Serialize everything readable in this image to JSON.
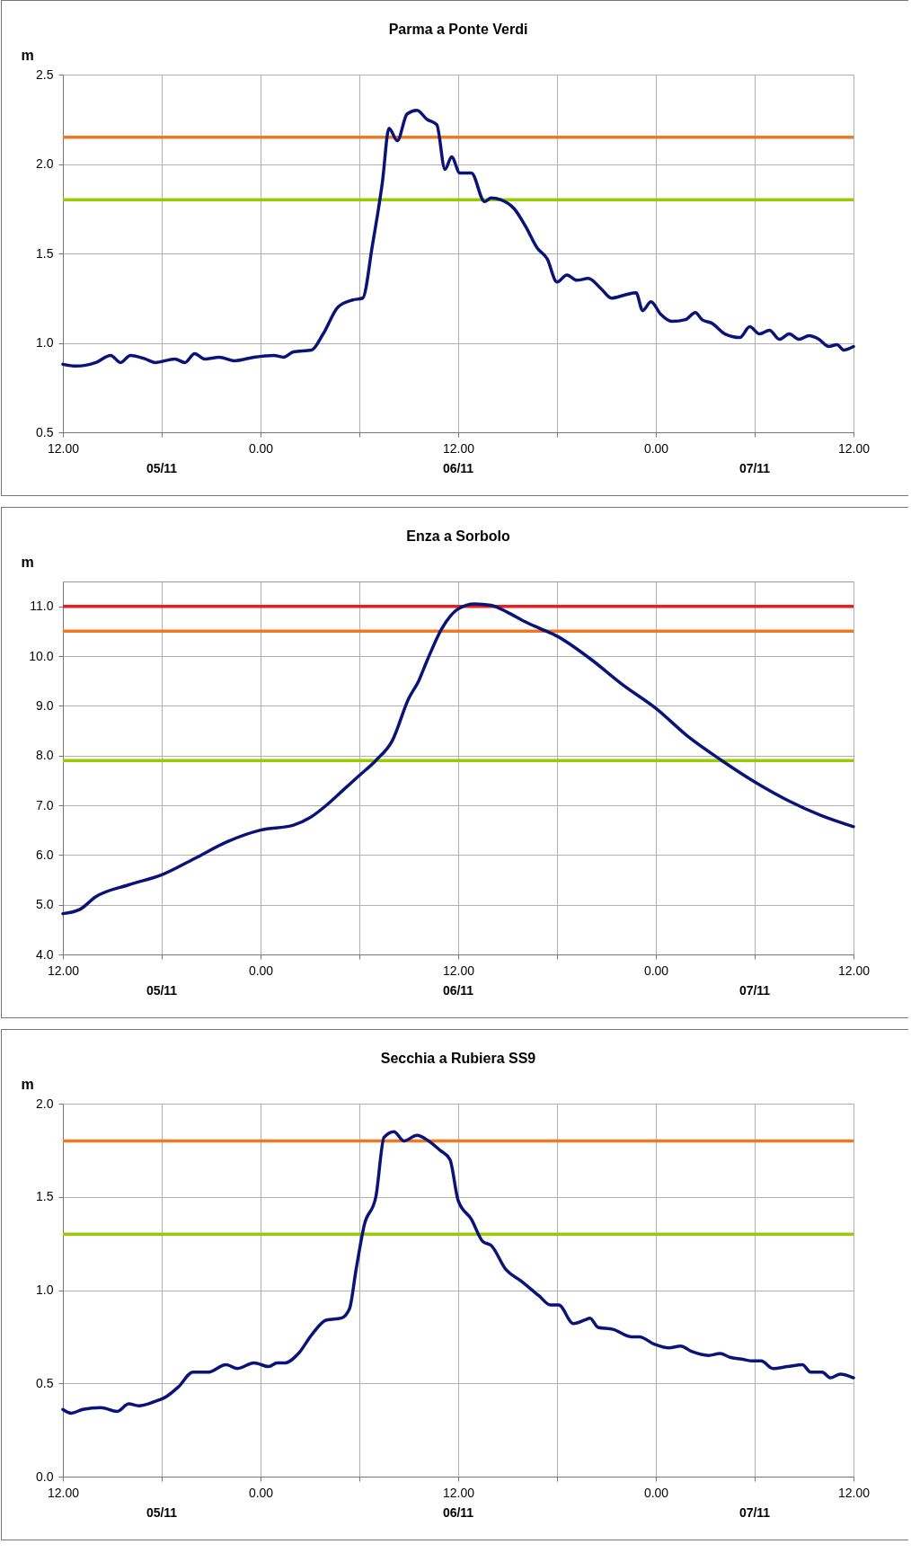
{
  "chart_data": [
    {
      "type": "line",
      "title": "Parma  a  Ponte Verdi",
      "ylabel": "m",
      "xlim": [
        "--11-05T12:00",
        "--11-07T12:00"
      ],
      "ylim": [
        0.5,
        2.5
      ],
      "xticks": [
        {
          "value": "--11-05T12:00",
          "label": "12.00"
        },
        {
          "value": "--11-05T18:00",
          "label": null
        },
        {
          "value": "--11-06T00:00",
          "label": "0.00"
        },
        {
          "value": "--11-06T06:00",
          "label": null
        },
        {
          "value": "--11-06T12:00",
          "label": "12.00"
        },
        {
          "value": "--11-06T18:00",
          "label": null
        },
        {
          "value": "--11-07T00:00",
          "label": "0.00"
        },
        {
          "value": "--11-07T06:00",
          "label": null
        },
        {
          "value": "--11-07T12:00",
          "label": "12.00"
        }
      ],
      "yticks": [
        {
          "value": 0.5,
          "label": "0.5"
        },
        {
          "value": 1,
          "label": "1.0"
        },
        {
          "value": 1.5,
          "label": "1.5"
        },
        {
          "value": 2,
          "label": "2.0"
        },
        {
          "value": 2.5,
          "label": "2.5"
        }
      ],
      "grid": true,
      "line_style": "solid",
      "marker": "none",
      "ref_lines": [
        {
          "axis": "y",
          "value": 2.15,
          "color": "#f07820"
        },
        {
          "axis": "y",
          "value": 1.8,
          "color": "#99cc00"
        }
      ],
      "annotations": [
        "05/11",
        "06/11",
        "07/11"
      ],
      "x": [
        "--11-05T12:00",
        "--11-05T12:48",
        "--11-05T14:00",
        "--11-05T14:54",
        "--11-05T15:30",
        "--11-05T16:06",
        "--11-05T17:00",
        "--11-05T17:36",
        "--11-05T18:48",
        "--11-05T19:24",
        "--11-05T20:00",
        "--11-05T20:36",
        "--11-05T21:30",
        "--11-05T22:24",
        "--11-05T23:36",
        "--11-06T00:48",
        "--11-06T01:24",
        "--11-06T02:00",
        "--11-06T03:06",
        "--11-06T03:48",
        "--11-06T04:42",
        "--11-06T05:36",
        "--11-06T06:12",
        "--11-06T06:48",
        "--11-06T07:24",
        "--11-06T07:48",
        "--11-06T08:18",
        "--11-06T08:54",
        "--11-06T09:30",
        "--11-06T10:06",
        "--11-06T10:42",
        "--11-06T11:12",
        "--11-06T11:36",
        "--11-06T12:06",
        "--11-06T12:48",
        "--11-06T13:36",
        "--11-06T14:00",
        "--11-06T14:36",
        "--11-06T15:24",
        "--11-06T16:06",
        "--11-06T16:48",
        "--11-06T17:24",
        "--11-06T18:00",
        "--11-06T18:36",
        "--11-06T19:12",
        "--11-06T19:54",
        "--11-06T20:42",
        "--11-06T21:18",
        "--11-06T22:12",
        "--11-06T22:48",
        "--11-06T23:12",
        "--11-06T23:42",
        "--11-07T00:18",
        "--11-07T01:00",
        "--11-07T01:48",
        "--11-07T02:24",
        "--11-07T02:48",
        "--11-07T03:24",
        "--11-07T04:12",
        "--11-07T05:06",
        "--11-07T05:42",
        "--11-07T06:18",
        "--11-07T06:54",
        "--11-07T07:30",
        "--11-07T08:06",
        "--11-07T08:42",
        "--11-07T09:18",
        "--11-07T09:54",
        "--11-07T10:30",
        "--11-07T11:00",
        "--11-07T11:24",
        "--11-07T12:00"
      ],
      "series": [
        {
          "color": "#0a1478",
          "values": [
            0.88,
            0.87,
            0.89,
            0.93,
            0.89,
            0.93,
            0.91,
            0.89,
            0.91,
            0.89,
            0.94,
            0.91,
            0.92,
            0.9,
            0.92,
            0.93,
            0.92,
            0.95,
            0.96,
            1.05,
            1.2,
            1.24,
            1.25,
            1.55,
            1.9,
            2.2,
            2.13,
            2.28,
            2.3,
            2.25,
            2.22,
            1.97,
            2.04,
            1.95,
            1.95,
            1.79,
            1.81,
            1.8,
            1.75,
            1.65,
            1.53,
            1.47,
            1.34,
            1.38,
            1.35,
            1.36,
            1.3,
            1.25,
            1.27,
            1.28,
            1.18,
            1.23,
            1.16,
            1.12,
            1.13,
            1.17,
            1.13,
            1.11,
            1.05,
            1.03,
            1.09,
            1.05,
            1.07,
            1.02,
            1.05,
            1.02,
            1.04,
            1.02,
            0.98,
            0.99,
            0.96,
            0.98
          ]
        }
      ]
    },
    {
      "type": "line",
      "title": "Enza a Sorbolo",
      "ylabel": "m",
      "xlim": [
        "--11-05T12:00",
        "--11-07T12:00"
      ],
      "ylim": [
        4,
        11.5
      ],
      "xticks": [
        {
          "value": "--11-05T12:00",
          "label": "12.00"
        },
        {
          "value": "--11-05T18:00",
          "label": null
        },
        {
          "value": "--11-06T00:00",
          "label": "0.00"
        },
        {
          "value": "--11-06T06:00",
          "label": null
        },
        {
          "value": "--11-06T12:00",
          "label": "12.00"
        },
        {
          "value": "--11-06T18:00",
          "label": null
        },
        {
          "value": "--11-07T00:00",
          "label": "0.00"
        },
        {
          "value": "--11-07T06:00",
          "label": null
        },
        {
          "value": "--11-07T12:00",
          "label": "12.00"
        }
      ],
      "yticks": [
        {
          "value": 4,
          "label": "4.0"
        },
        {
          "value": 5,
          "label": "5.0"
        },
        {
          "value": 6,
          "label": "6.0"
        },
        {
          "value": 7,
          "label": "7.0"
        },
        {
          "value": 8,
          "label": "8.0"
        },
        {
          "value": 9,
          "label": "9.0"
        },
        {
          "value": 10,
          "label": "10.0"
        },
        {
          "value": 11,
          "label": "11.0"
        }
      ],
      "grid": true,
      "line_style": "solid",
      "marker": "none",
      "ref_lines": [
        {
          "axis": "y",
          "value": 11,
          "color": "#ee1c1c"
        },
        {
          "axis": "y",
          "value": 10.5,
          "color": "#f07820"
        },
        {
          "axis": "y",
          "value": 7.9,
          "color": "#99cc00"
        }
      ],
      "annotations": [
        "05/11",
        "06/11",
        "07/11"
      ],
      "x": [
        "--11-05T12:00",
        "--11-05T13:00",
        "--11-05T14:00",
        "--11-05T16:00",
        "--11-05T18:00",
        "--11-05T20:00",
        "--11-05T22:00",
        "--11-06T00:00",
        "--11-06T02:00",
        "--11-06T03:00",
        "--11-06T04:00",
        "--11-06T05:00",
        "--11-06T06:00",
        "--11-06T07:00",
        "--11-06T08:00",
        "--11-06T09:00",
        "--11-06T09:36",
        "--11-06T10:06",
        "--11-06T11:00",
        "--11-06T12:00",
        "--11-06T13:00",
        "--11-06T14:00",
        "--11-06T15:00",
        "--11-06T16:00",
        "--11-06T17:00",
        "--11-06T18:00",
        "--11-06T20:00",
        "--11-06T22:00",
        "--11-07T00:00",
        "--11-07T02:00",
        "--11-07T04:00",
        "--11-07T06:00",
        "--11-07T08:00",
        "--11-07T10:00",
        "--11-07T12:00"
      ],
      "series": [
        {
          "color": "#0a1478",
          "values": [
            4.82,
            4.9,
            5.16,
            5.4,
            5.6,
            5.93,
            6.27,
            6.5,
            6.6,
            6.75,
            7.0,
            7.3,
            7.6,
            7.9,
            8.3,
            9.15,
            9.5,
            9.9,
            10.55,
            10.95,
            11.05,
            11.02,
            10.88,
            10.7,
            10.55,
            10.4,
            9.95,
            9.42,
            8.95,
            8.37,
            7.9,
            7.47,
            7.1,
            6.8,
            6.57
          ]
        }
      ]
    },
    {
      "type": "line",
      "title": "Secchia a Rubiera SS9",
      "ylabel": "m",
      "xlim": [
        "--11-05T12:00",
        "--11-07T12:00"
      ],
      "ylim": [
        0,
        2
      ],
      "xticks": [
        {
          "value": "--11-05T12:00",
          "label": "12.00"
        },
        {
          "value": "--11-05T18:00",
          "label": null
        },
        {
          "value": "--11-06T00:00",
          "label": "0.00"
        },
        {
          "value": "--11-06T06:00",
          "label": null
        },
        {
          "value": "--11-06T12:00",
          "label": "12.00"
        },
        {
          "value": "--11-06T18:00",
          "label": null
        },
        {
          "value": "--11-07T00:00",
          "label": "0.00"
        },
        {
          "value": "--11-07T06:00",
          "label": null
        },
        {
          "value": "--11-07T12:00",
          "label": "12.00"
        }
      ],
      "yticks": [
        {
          "value": 0,
          "label": "0.0"
        },
        {
          "value": 0.5,
          "label": "0.5"
        },
        {
          "value": 1,
          "label": "1.0"
        },
        {
          "value": 1.5,
          "label": "1.5"
        },
        {
          "value": 2,
          "label": "2.0"
        }
      ],
      "grid": true,
      "line_style": "solid",
      "marker": "none",
      "ref_lines": [
        {
          "axis": "y",
          "value": 1.8,
          "color": "#f07820"
        },
        {
          "axis": "y",
          "value": 1.3,
          "color": "#99cc00"
        }
      ],
      "annotations": [
        "05/11",
        "06/11",
        "07/11"
      ],
      "x": [
        "--11-05T12:00",
        "--11-05T12:30",
        "--11-05T13:12",
        "--11-05T14:18",
        "--11-05T15:18",
        "--11-05T16:00",
        "--11-05T16:36",
        "--11-05T17:30",
        "--11-05T18:18",
        "--11-05T19:00",
        "--11-05T19:54",
        "--11-05T20:48",
        "--11-05T21:54",
        "--11-05T22:36",
        "--11-05T23:36",
        "--11-06T00:30",
        "--11-06T01:00",
        "--11-06T01:30",
        "--11-06T02:18",
        "--11-06T03:06",
        "--11-06T04:00",
        "--11-06T04:54",
        "--11-06T05:24",
        "--11-06T05:48",
        "--11-06T06:18",
        "--11-06T07:00",
        "--11-06T07:30",
        "--11-06T08:06",
        "--11-06T08:42",
        "--11-06T09:30",
        "--11-06T10:12",
        "--11-06T10:54",
        "--11-06T11:30",
        "--11-06T12:00",
        "--11-06T12:48",
        "--11-06T13:30",
        "--11-06T14:00",
        "--11-06T14:54",
        "--11-06T15:48",
        "--11-06T16:54",
        "--11-06T17:36",
        "--11-06T18:06",
        "--11-06T19:00",
        "--11-06T19:42",
        "--11-06T20:00",
        "--11-06T20:30",
        "--11-06T21:24",
        "--11-06T22:30",
        "--11-06T23:00",
        "--11-06T23:54",
        "--11-07T00:48",
        "--11-07T01:30",
        "--11-07T02:12",
        "--11-07T03:12",
        "--11-07T03:54",
        "--11-07T04:30",
        "--11-07T05:12",
        "--11-07T05:54",
        "--11-07T06:24",
        "--11-07T07:06",
        "--11-07T08:00",
        "--11-07T08:54",
        "--11-07T09:24",
        "--11-07T10:06",
        "--11-07T10:36",
        "--11-07T11:12",
        "--11-07T12:00"
      ],
      "series": [
        {
          "color": "#0a1478",
          "values": [
            0.36,
            0.34,
            0.36,
            0.37,
            0.35,
            0.39,
            0.38,
            0.4,
            0.43,
            0.48,
            0.56,
            0.56,
            0.6,
            0.58,
            0.61,
            0.59,
            0.61,
            0.61,
            0.66,
            0.76,
            0.84,
            0.85,
            0.9,
            1.11,
            1.35,
            1.5,
            1.82,
            1.85,
            1.8,
            1.83,
            1.8,
            1.75,
            1.7,
            1.48,
            1.38,
            1.26,
            1.24,
            1.11,
            1.05,
            0.97,
            0.92,
            0.92,
            0.82,
            0.84,
            0.85,
            0.8,
            0.79,
            0.75,
            0.75,
            0.71,
            0.69,
            0.7,
            0.67,
            0.65,
            0.66,
            0.64,
            0.63,
            0.62,
            0.62,
            0.58,
            0.59,
            0.6,
            0.56,
            0.56,
            0.53,
            0.55,
            0.53
          ]
        }
      ]
    }
  ]
}
